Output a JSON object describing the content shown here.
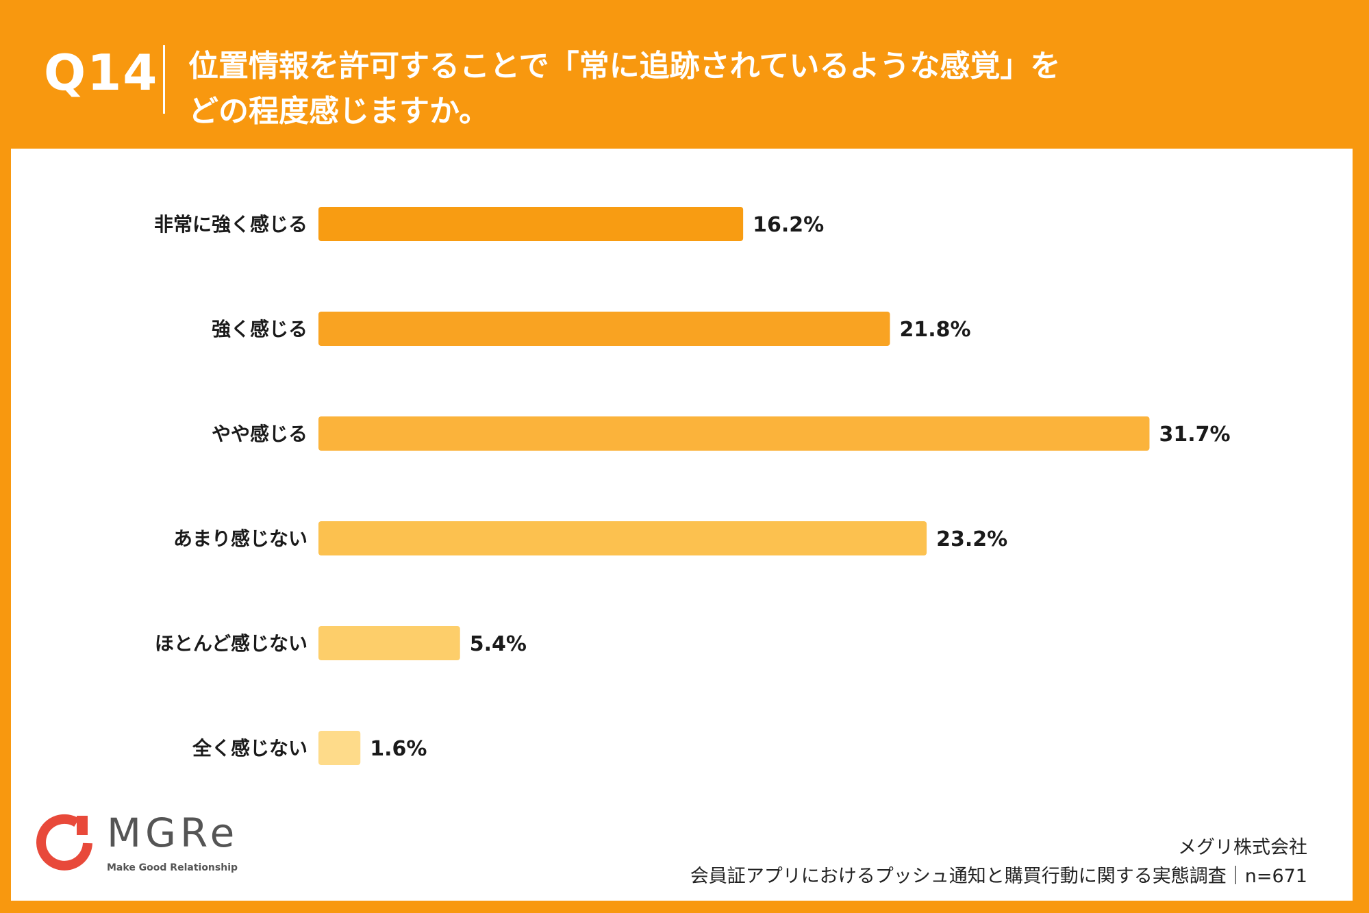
{
  "header": {
    "question_number": "Q14",
    "title_line1": "位置情報を許可することで「常に追跡されているような感覚」を",
    "title_line2": "どの程度感じますか。"
  },
  "chart_data": {
    "type": "bar",
    "orientation": "horizontal",
    "categories": [
      "非常に強く感じる",
      "強く感じる",
      "やや感じる",
      "あまり感じない",
      "ほとんど感じない",
      "全く感じない"
    ],
    "values": [
      16.2,
      21.8,
      31.7,
      23.2,
      5.4,
      1.6
    ],
    "value_labels": [
      "16.2%",
      "21.8%",
      "31.7%",
      "23.2%",
      "5.4%",
      "1.6%"
    ],
    "bar_colors": [
      "#F89C12",
      "#F9A322",
      "#FBB33B",
      "#FCC14F",
      "#FDCE6A",
      "#FEDB8A"
    ]
  },
  "colors": {
    "background": "#F8980F",
    "panel": "#FFFFFF"
  },
  "logo": {
    "text": "MGRe",
    "tagline": "Make Good Relationship"
  },
  "source": {
    "company": "メグリ株式会社",
    "survey": "会員証アプリにおけるプッシュ通知と購買行動に関する実態調査｜n=671"
  }
}
